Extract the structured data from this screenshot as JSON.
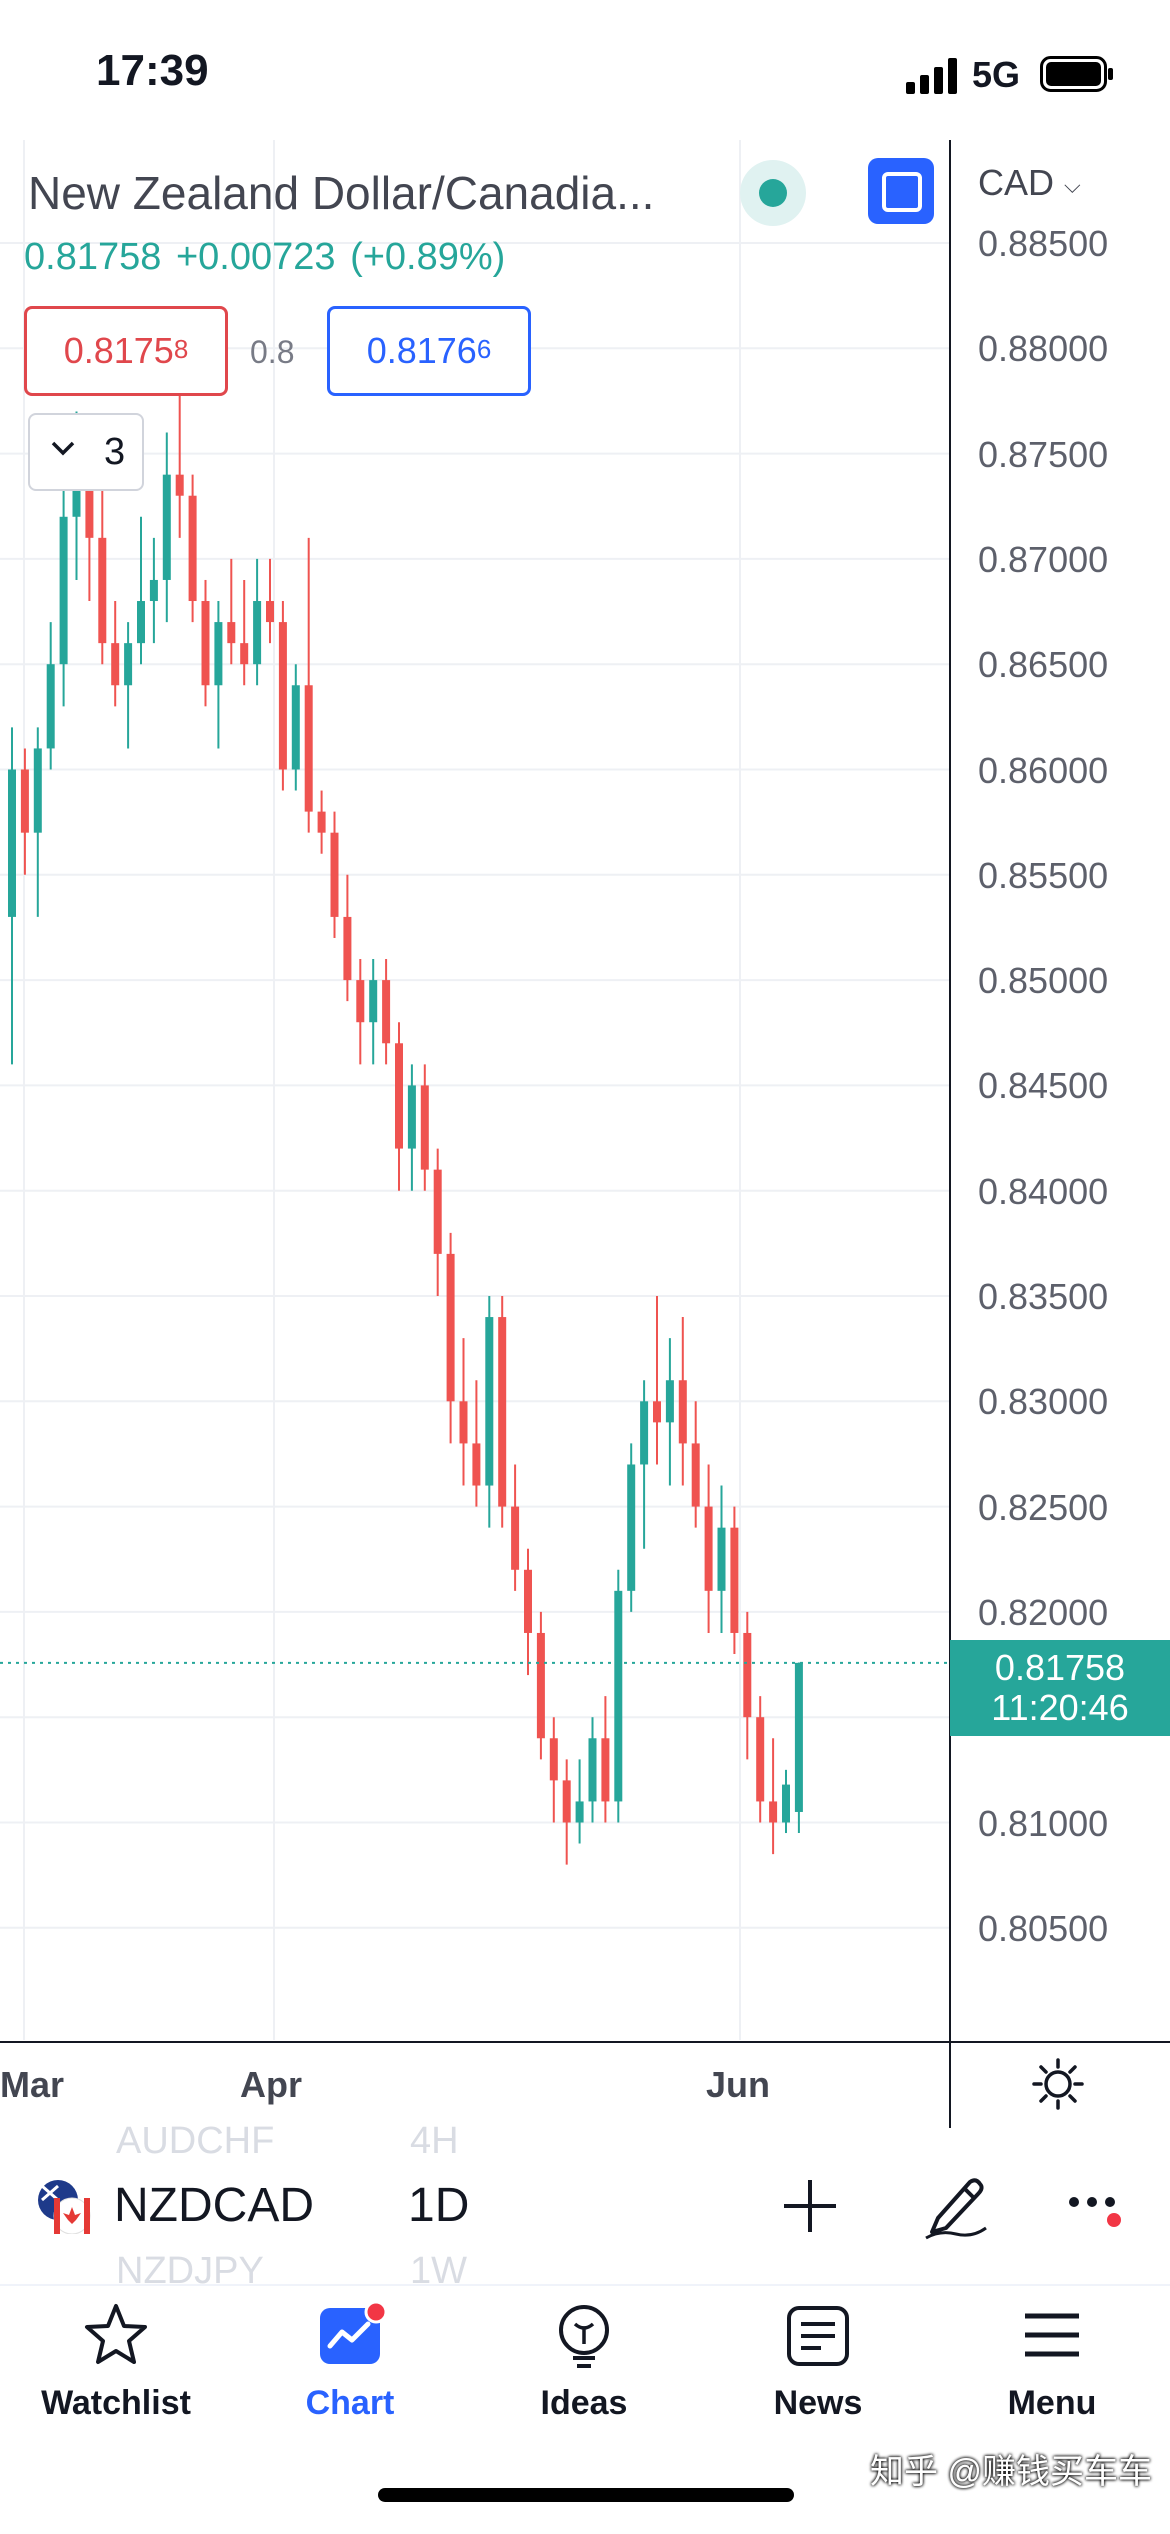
{
  "status_bar": {
    "time": "17:39",
    "network": "5G",
    "icons": [
      "signal-icon",
      "battery-icon"
    ]
  },
  "chart": {
    "title": "New Zealand Dollar/Canadia...",
    "last_price": "0.81758",
    "change": "+0.00723",
    "change_percent": "(+0.89%)",
    "sell": {
      "main": "0.8175",
      "small": "8"
    },
    "buy": {
      "main": "0.8176",
      "small": "6"
    },
    "spread": "0.8",
    "indicators_count": "3",
    "currency": "CAD",
    "price_tag": {
      "price": "0.81758",
      "countdown": "11:20:46"
    },
    "colors": {
      "up": "#26a69a",
      "down": "#ef5350",
      "accent": "#2962ff"
    }
  },
  "chart_data": {
    "type": "candlestick",
    "instrument": "NZDCAD",
    "interval": "1D",
    "y_axis_ticks": [
      "0.88500",
      "0.88000",
      "0.87500",
      "0.87000",
      "0.86500",
      "0.86000",
      "0.85500",
      "0.85000",
      "0.84500",
      "0.84000",
      "0.83500",
      "0.83000",
      "0.82500",
      "0.82000",
      "0.81500",
      "0.81000",
      "0.80500"
    ],
    "ylim": [
      0.8,
      0.8875
    ],
    "x_axis_ticks": [
      "Mar",
      "Apr",
      "Jun"
    ],
    "last_price": 0.81758,
    "candles_ohlc": [
      [
        0.853,
        0.862,
        0.846,
        0.86
      ],
      [
        0.86,
        0.861,
        0.855,
        0.857
      ],
      [
        0.857,
        0.862,
        0.853,
        0.861
      ],
      [
        0.861,
        0.867,
        0.86,
        0.865
      ],
      [
        0.865,
        0.876,
        0.863,
        0.872
      ],
      [
        0.872,
        0.877,
        0.869,
        0.874
      ],
      [
        0.874,
        0.876,
        0.868,
        0.871
      ],
      [
        0.871,
        0.874,
        0.865,
        0.866
      ],
      [
        0.866,
        0.868,
        0.863,
        0.864
      ],
      [
        0.864,
        0.867,
        0.861,
        0.866
      ],
      [
        0.866,
        0.872,
        0.865,
        0.868
      ],
      [
        0.868,
        0.871,
        0.866,
        0.869
      ],
      [
        0.869,
        0.876,
        0.867,
        0.874
      ],
      [
        0.874,
        0.878,
        0.871,
        0.873
      ],
      [
        0.873,
        0.874,
        0.867,
        0.868
      ],
      [
        0.868,
        0.869,
        0.863,
        0.864
      ],
      [
        0.864,
        0.868,
        0.861,
        0.867
      ],
      [
        0.867,
        0.87,
        0.865,
        0.866
      ],
      [
        0.866,
        0.869,
        0.864,
        0.865
      ],
      [
        0.865,
        0.87,
        0.864,
        0.868
      ],
      [
        0.868,
        0.87,
        0.866,
        0.867
      ],
      [
        0.867,
        0.868,
        0.859,
        0.86
      ],
      [
        0.86,
        0.865,
        0.859,
        0.864
      ],
      [
        0.864,
        0.871,
        0.857,
        0.858
      ],
      [
        0.858,
        0.859,
        0.856,
        0.857
      ],
      [
        0.857,
        0.858,
        0.852,
        0.853
      ],
      [
        0.853,
        0.855,
        0.849,
        0.85
      ],
      [
        0.85,
        0.851,
        0.846,
        0.848
      ],
      [
        0.848,
        0.851,
        0.846,
        0.85
      ],
      [
        0.85,
        0.851,
        0.846,
        0.847
      ],
      [
        0.847,
        0.848,
        0.84,
        0.842
      ],
      [
        0.842,
        0.846,
        0.84,
        0.845
      ],
      [
        0.845,
        0.846,
        0.84,
        0.841
      ],
      [
        0.841,
        0.842,
        0.835,
        0.837
      ],
      [
        0.837,
        0.838,
        0.828,
        0.83
      ],
      [
        0.83,
        0.833,
        0.826,
        0.828
      ],
      [
        0.828,
        0.831,
        0.825,
        0.826
      ],
      [
        0.826,
        0.835,
        0.824,
        0.834
      ],
      [
        0.834,
        0.835,
        0.824,
        0.825
      ],
      [
        0.825,
        0.827,
        0.821,
        0.822
      ],
      [
        0.822,
        0.823,
        0.817,
        0.819
      ],
      [
        0.819,
        0.82,
        0.813,
        0.814
      ],
      [
        0.814,
        0.815,
        0.81,
        0.812
      ],
      [
        0.812,
        0.813,
        0.808,
        0.81
      ],
      [
        0.81,
        0.813,
        0.809,
        0.811
      ],
      [
        0.811,
        0.815,
        0.81,
        0.814
      ],
      [
        0.814,
        0.816,
        0.81,
        0.811
      ],
      [
        0.811,
        0.822,
        0.81,
        0.821
      ],
      [
        0.821,
        0.828,
        0.82,
        0.827
      ],
      [
        0.827,
        0.831,
        0.823,
        0.83
      ],
      [
        0.83,
        0.835,
        0.827,
        0.829
      ],
      [
        0.829,
        0.833,
        0.826,
        0.831
      ],
      [
        0.831,
        0.834,
        0.826,
        0.828
      ],
      [
        0.828,
        0.83,
        0.824,
        0.825
      ],
      [
        0.825,
        0.827,
        0.819,
        0.821
      ],
      [
        0.821,
        0.826,
        0.819,
        0.824
      ],
      [
        0.824,
        0.825,
        0.818,
        0.819
      ],
      [
        0.819,
        0.82,
        0.813,
        0.815
      ],
      [
        0.815,
        0.816,
        0.81,
        0.811
      ],
      [
        0.811,
        0.814,
        0.8085,
        0.81
      ],
      [
        0.81,
        0.8125,
        0.8095,
        0.8118
      ],
      [
        0.8105,
        0.8176,
        0.8095,
        0.81758
      ]
    ]
  },
  "time_axis": {
    "labels": [
      "Mar",
      "Apr",
      "Jun"
    ]
  },
  "symbol_strip": {
    "ghost_above": {
      "symbol": "AUDCHF",
      "interval": "4H"
    },
    "symbol": "NZDCAD",
    "interval": "1D",
    "ghost_below": {
      "symbol": "NZDJPY",
      "interval": "1W"
    }
  },
  "tabs": [
    {
      "label": "Watchlist",
      "icon": "star-icon",
      "active": false
    },
    {
      "label": "Chart",
      "icon": "chart-icon",
      "active": true
    },
    {
      "label": "Ideas",
      "icon": "lightbulb-icon",
      "active": false
    },
    {
      "label": "News",
      "icon": "news-icon",
      "active": false
    },
    {
      "label": "Menu",
      "icon": "menu-icon",
      "active": false
    }
  ],
  "watermark": "知乎 @赚钱买车车"
}
